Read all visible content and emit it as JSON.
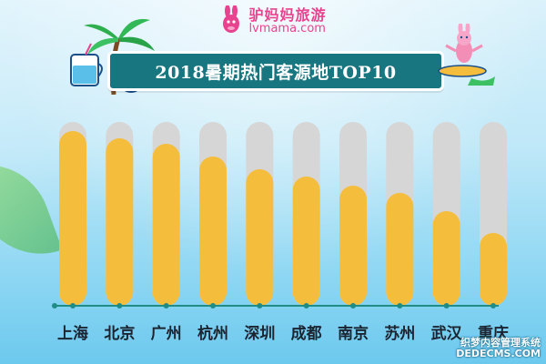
{
  "logo": {
    "cn": "驴妈妈旅游",
    "en": "lvmama.com"
  },
  "title": "2018暑期热门客源地TOP10",
  "chart_data": {
    "type": "bar",
    "title": "2018暑期热门客源地TOP10",
    "categories": [
      "上海",
      "北京",
      "广州",
      "杭州",
      "深圳",
      "成都",
      "南京",
      "苏州",
      "武汉",
      "重庆"
    ],
    "values": [
      96,
      92,
      89,
      82,
      75,
      71,
      66,
      62,
      52,
      40
    ],
    "ylim": [
      0,
      100
    ],
    "grid": false,
    "legend": "none",
    "bar_color": "#f5bd3c",
    "track_color": "#d6d6d6",
    "axis_color": "#1f8c86"
  },
  "watermark": {
    "line1": "织梦内容管理系统",
    "line2": "DEDECMS.COM"
  }
}
